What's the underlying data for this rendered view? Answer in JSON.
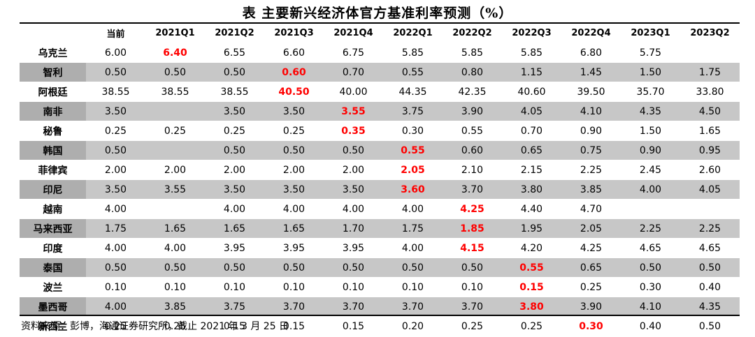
{
  "title": "表  主要新兴经济体官方基准利率预测（%）",
  "columns": [
    "",
    "当前",
    "2021Q1",
    "2021Q2",
    "2021Q3",
    "2021Q4",
    "2022Q1",
    "2022Q2",
    "2022Q3",
    "2022Q4",
    "2023Q1",
    "2023Q2"
  ],
  "rows": [
    {
      "country": "乌克兰",
      "values": [
        "6.00",
        "6.40",
        "6.55",
        "6.60",
        "6.75",
        "5.85",
        "5.85",
        "5.85",
        "6.80",
        "5.75",
        ""
      ],
      "highlight_col": 1
    },
    {
      "country": "智利",
      "values": [
        "0.50",
        "0.50",
        "0.50",
        "0.60",
        "0.70",
        "0.55",
        "0.80",
        "1.15",
        "1.45",
        "1.50",
        "1.75"
      ],
      "highlight_col": 3
    },
    {
      "country": "阿根廷",
      "values": [
        "38.55",
        "38.55",
        "38.55",
        "40.50",
        "40.00",
        "44.35",
        "42.35",
        "40.60",
        "39.50",
        "35.70",
        "33.80"
      ],
      "highlight_col": 3
    },
    {
      "country": "南非",
      "values": [
        "3.50",
        "",
        "3.50",
        "3.50",
        "3.55",
        "3.75",
        "3.90",
        "4.05",
        "4.10",
        "4.35",
        "4.50"
      ],
      "highlight_col": 4
    },
    {
      "country": "秘鲁",
      "values": [
        "0.25",
        "0.25",
        "0.25",
        "0.25",
        "0.35",
        "0.30",
        "0.55",
        "0.70",
        "0.90",
        "1.50",
        "1.65"
      ],
      "highlight_col": 4
    },
    {
      "country": "韩国",
      "values": [
        "0.50",
        "",
        "0.50",
        "0.50",
        "0.50",
        "0.55",
        "0.60",
        "0.65",
        "0.75",
        "0.90",
        "0.95"
      ],
      "highlight_col": 5
    },
    {
      "country": "菲律宾",
      "values": [
        "2.00",
        "2.00",
        "2.00",
        "2.00",
        "2.00",
        "2.05",
        "2.10",
        "2.15",
        "2.25",
        "2.45",
        "2.60"
      ],
      "highlight_col": 5
    },
    {
      "country": "印尼",
      "values": [
        "3.50",
        "3.55",
        "3.50",
        "3.50",
        "3.50",
        "3.60",
        "3.70",
        "3.80",
        "3.85",
        "4.00",
        "4.05"
      ],
      "highlight_col": 5
    },
    {
      "country": "越南",
      "values": [
        "4.00",
        "",
        "4.00",
        "4.00",
        "4.00",
        "4.00",
        "4.25",
        "4.40",
        "4.70",
        "",
        ""
      ],
      "highlight_col": 6
    },
    {
      "country": "马来西亚",
      "values": [
        "1.75",
        "1.65",
        "1.65",
        "1.65",
        "1.70",
        "1.75",
        "1.85",
        "1.95",
        "2.05",
        "2.25",
        "2.25"
      ],
      "highlight_col": 6
    },
    {
      "country": "印度",
      "values": [
        "4.00",
        "4.00",
        "3.95",
        "3.95",
        "3.95",
        "4.00",
        "4.15",
        "4.20",
        "4.25",
        "4.65",
        "4.65"
      ],
      "highlight_col": 6
    },
    {
      "country": "泰国",
      "values": [
        "0.50",
        "0.50",
        "0.50",
        "0.50",
        "0.50",
        "0.50",
        "0.50",
        "0.55",
        "0.65",
        "0.50",
        "0.50"
      ],
      "highlight_col": 7
    },
    {
      "country": "波兰",
      "values": [
        "0.10",
        "0.10",
        "0.10",
        "0.10",
        "0.10",
        "0.10",
        "0.10",
        "0.15",
        "0.25",
        "0.30",
        "0.40"
      ],
      "highlight_col": 7
    },
    {
      "country": "墨西哥",
      "values": [
        "4.00",
        "3.85",
        "3.75",
        "3.70",
        "3.70",
        "3.70",
        "3.70",
        "3.80",
        "3.90",
        "4.10",
        "4.35"
      ],
      "highlight_col": 7
    },
    {
      "country": "新西兰",
      "values": [
        "0.25",
        "0.25",
        "0.15",
        "0.15",
        "0.15",
        "0.20",
        "0.25",
        "0.25",
        "0.30",
        "0.40",
        "0.50"
      ],
      "highlight_col": 8
    }
  ],
  "highlight_color": "#ff0000",
  "shade_color": "#c7c7c7",
  "source": "资料来源：彭博，海通证券研究所，截止 2021 年 3 月 25 日"
}
